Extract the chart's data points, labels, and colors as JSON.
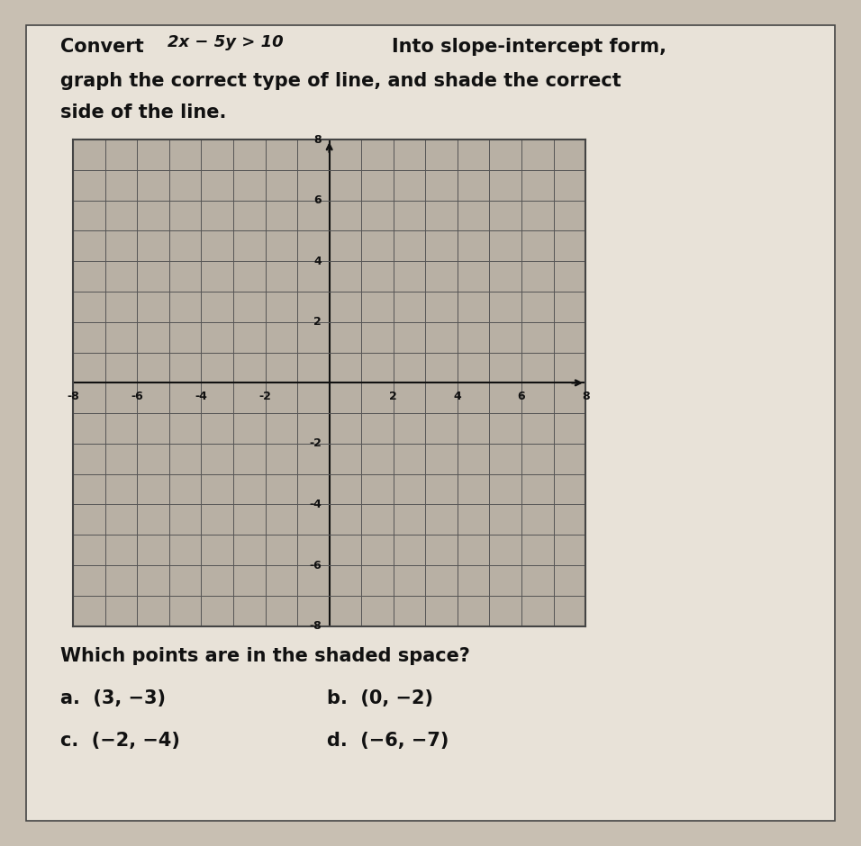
{
  "xmin": -8,
  "xmax": 8,
  "ymin": -8,
  "ymax": 8,
  "bg_color": "#c8bfb2",
  "card_color": "#e8e2d8",
  "grid_bg_color": "#b8b0a4",
  "grid_line_color": "#555555",
  "axis_color": "#111111",
  "border_color": "#444444",
  "text_color": "#111111",
  "title_convert": "Convert ",
  "title_ineq": "2x − 5y > 10",
  "title_rest": "Into slope-intercept form,",
  "title_line2": "graph the correct type of line, and shade the correct",
  "title_line3": "side of the line.",
  "question": "Which points are in the shaded space?",
  "ans_a": "a.  (3, -3)",
  "ans_b": "b.  (0, -2)",
  "ans_c": "c.  (-2, -4)",
  "ans_d": "d.  (-6, -7)"
}
